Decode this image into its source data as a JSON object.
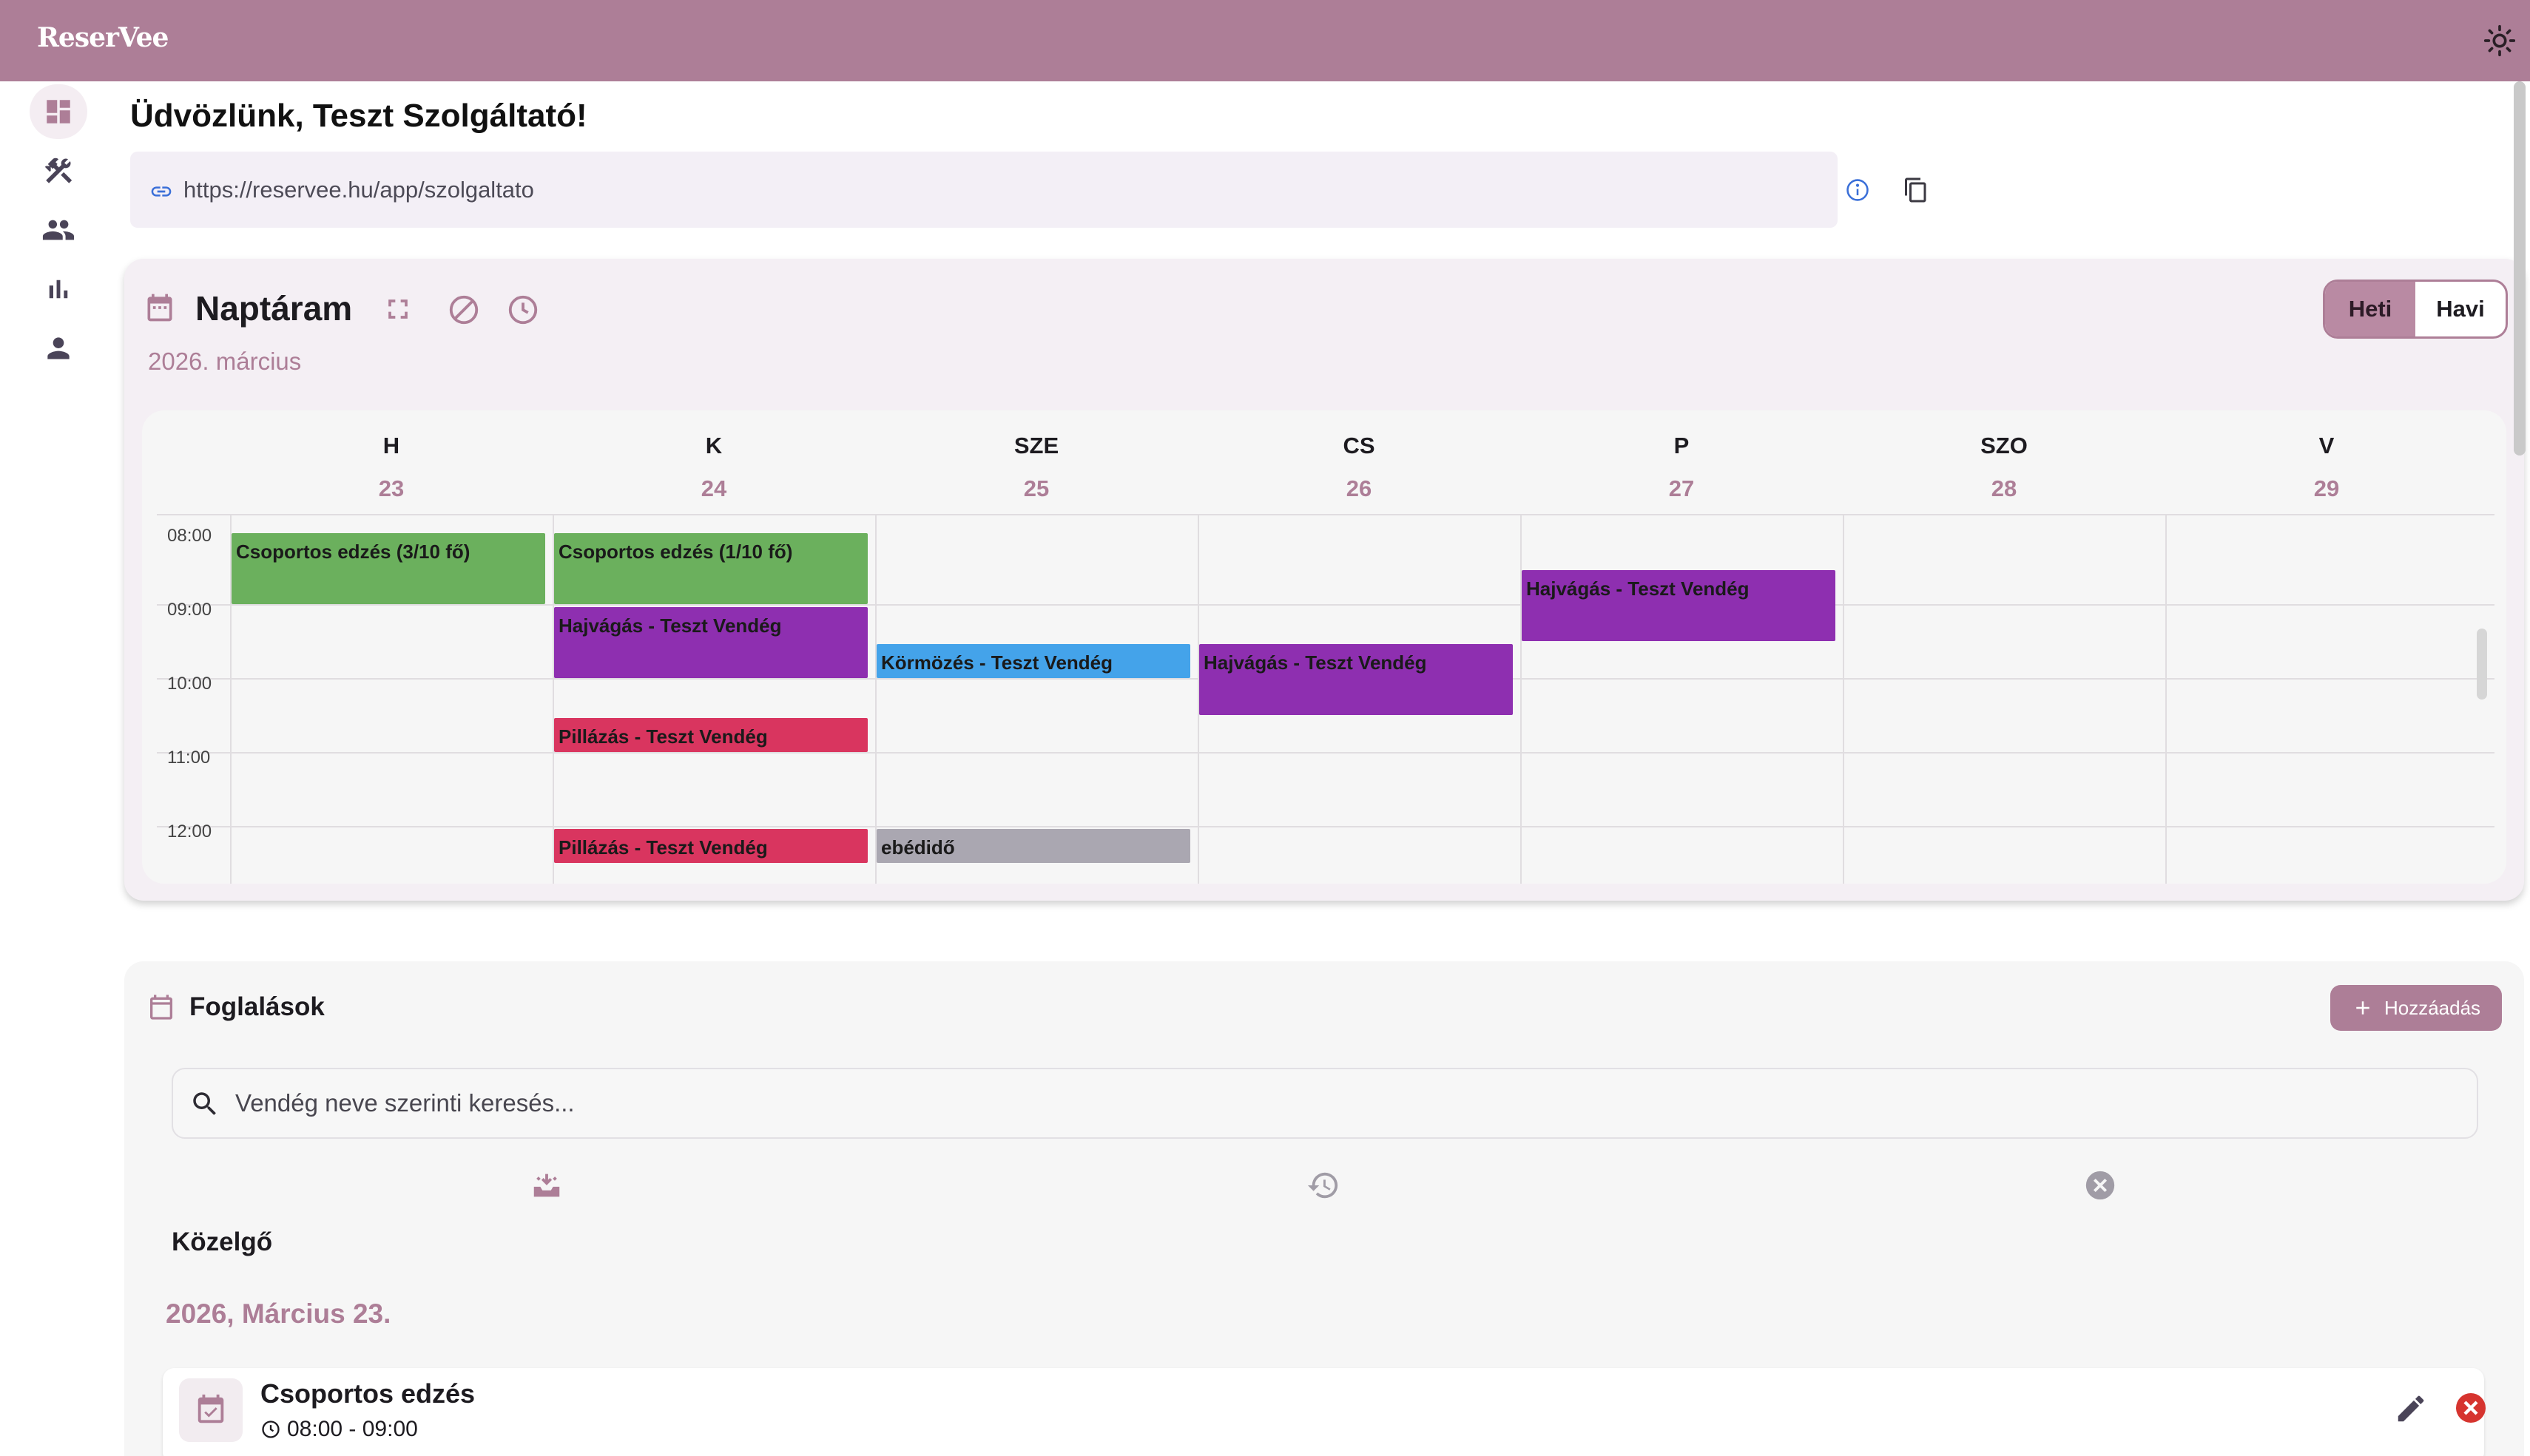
{
  "app": {
    "logo": "ReserVee"
  },
  "sidebar": {
    "items": [
      {
        "name": "dashboard",
        "icon": "dashboard-icon"
      },
      {
        "name": "services",
        "icon": "tools-icon"
      },
      {
        "name": "customers",
        "icon": "people-icon"
      },
      {
        "name": "statistics",
        "icon": "bar-chart-icon"
      },
      {
        "name": "profile",
        "icon": "person-icon"
      }
    ]
  },
  "header": {
    "welcome": "Üdvözlünk, Teszt Szolgáltató!",
    "url": "https://reservee.hu/app/szolgaltato"
  },
  "calendar": {
    "title": "Naptáram",
    "month": "2026. március",
    "view_week": "Heti",
    "view_month": "Havi",
    "days": [
      {
        "name": "H",
        "num": "23"
      },
      {
        "name": "K",
        "num": "24"
      },
      {
        "name": "SZE",
        "num": "25"
      },
      {
        "name": "CS",
        "num": "26"
      },
      {
        "name": "P",
        "num": "27"
      },
      {
        "name": "SZO",
        "num": "28"
      },
      {
        "name": "V",
        "num": "29"
      }
    ],
    "times": [
      "08:00",
      "09:00",
      "10:00",
      "11:00",
      "12:00"
    ],
    "events": [
      {
        "day": 0,
        "start": 8.0,
        "end": 9.0,
        "label": "Csoportos edzés (3/10 fő)",
        "color": "green"
      },
      {
        "day": 1,
        "start": 8.0,
        "end": 9.0,
        "label": "Csoportos edzés (1/10 fő)",
        "color": "green"
      },
      {
        "day": 1,
        "start": 9.0,
        "end": 10.0,
        "label": "Hajvágás - Teszt Vendég",
        "color": "purple"
      },
      {
        "day": 1,
        "start": 10.5,
        "end": 11.0,
        "label": "Pillázás - Teszt Vendég",
        "color": "pink"
      },
      {
        "day": 1,
        "start": 12.0,
        "end": 12.5,
        "label": "Pillázás - Teszt Vendég",
        "color": "pink"
      },
      {
        "day": 2,
        "start": 9.5,
        "end": 10.0,
        "label": "Körmözés - Teszt Vendég",
        "color": "blue"
      },
      {
        "day": 2,
        "start": 12.0,
        "end": 12.5,
        "label": "ebédidő",
        "color": "gray"
      },
      {
        "day": 3,
        "start": 9.5,
        "end": 10.5,
        "label": "Hajvágás - Teszt Vendég",
        "color": "purple"
      },
      {
        "day": 4,
        "start": 8.5,
        "end": 9.5,
        "label": "Hajvágás - Teszt Vendég",
        "color": "purple"
      }
    ]
  },
  "bookings": {
    "title": "Foglalások",
    "add_label": "Hozzáadás",
    "search_placeholder": "Vendég neve szerinti keresés...",
    "section_label": "Közelgő",
    "date_group": "2026, Március 23.",
    "items": [
      {
        "title": "Csoportos edzés",
        "time": "08:00 - 09:00"
      }
    ]
  },
  "colors": {
    "accent": "#ad7e97",
    "green": "#6bb05d",
    "purple": "#8e2fb0",
    "pink": "#d9355f",
    "blue": "#44a3ea",
    "gray": "#aaa7b1"
  }
}
